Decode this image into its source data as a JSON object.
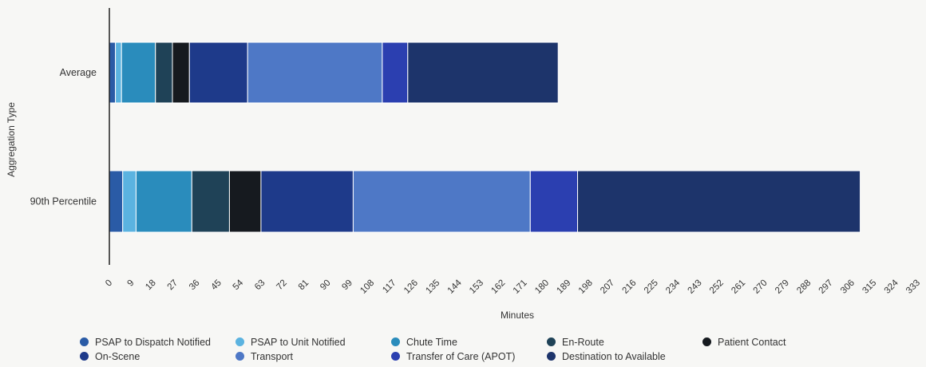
{
  "chart_data": {
    "type": "bar",
    "orientation": "horizontal",
    "stacked": true,
    "xlabel": "Minutes",
    "ylabel": "Aggregation Type",
    "xlim": [
      0,
      333
    ],
    "xticks": [
      0,
      9,
      18,
      27,
      36,
      45,
      54,
      63,
      72,
      81,
      90,
      99,
      108,
      117,
      126,
      135,
      144,
      153,
      162,
      171,
      180,
      189,
      198,
      207,
      216,
      225,
      234,
      243,
      252,
      261,
      270,
      279,
      288,
      297,
      306,
      315,
      324,
      333
    ],
    "categories": [
      "Average",
      "90th Percentile"
    ],
    "series": [
      {
        "name": "PSAP to Dispatch Notified",
        "color": "#2a5ba6",
        "values": [
          2.5,
          5.5
        ]
      },
      {
        "name": "PSAP to Unit Notified",
        "color": "#5bb3e0",
        "values": [
          2.5,
          5.5
        ]
      },
      {
        "name": "Chute Time",
        "color": "#2a8cbc",
        "values": [
          14,
          23
        ]
      },
      {
        "name": "En-Route",
        "color": "#1f4257",
        "values": [
          7,
          15.5
        ]
      },
      {
        "name": "Patient Contact",
        "color": "#161a1f",
        "values": [
          7,
          13
        ]
      },
      {
        "name": "On-Scene",
        "color": "#1e3a8a",
        "values": [
          24,
          38
        ]
      },
      {
        "name": "Transport",
        "color": "#4e78c6",
        "values": [
          55.5,
          73
        ]
      },
      {
        "name": "Transfer of Care (APOT)",
        "color": "#2b3fb0",
        "values": [
          10.5,
          19.5
        ]
      },
      {
        "name": "Destination to Available",
        "color": "#1d346b",
        "values": [
          62,
          116.5
        ]
      }
    ],
    "grid": false,
    "legend_position": "bottom"
  }
}
